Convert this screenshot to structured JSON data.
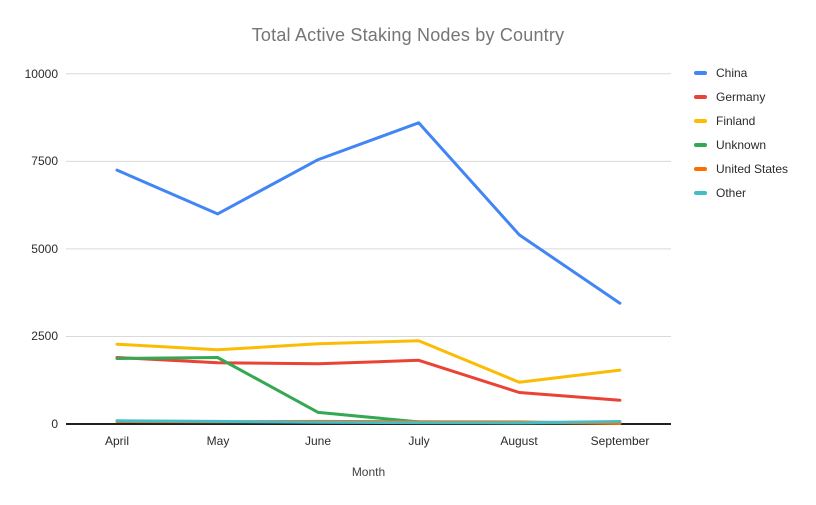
{
  "chart_data": {
    "type": "line",
    "title": "Total Active Staking Nodes by Country",
    "xlabel": "Month",
    "ylabel": "",
    "categories": [
      "April",
      "May",
      "June",
      "July",
      "August",
      "September"
    ],
    "yticks_display": [
      "10000",
      "7500",
      "5000",
      "2500",
      "0"
    ],
    "ylim": [
      0,
      10000
    ],
    "grid": true,
    "legend_position": "right",
    "series": [
      {
        "name": "China",
        "color": "#4285F4",
        "values": [
          7250,
          6000,
          7550,
          8600,
          5400,
          3450
        ]
      },
      {
        "name": "Germany",
        "color": "#EA4335",
        "values": [
          1900,
          1750,
          1720,
          1820,
          900,
          680
        ]
      },
      {
        "name": "Finland",
        "color": "#FBBC04",
        "values": [
          2280,
          2120,
          2290,
          2380,
          1190,
          1540
        ]
      },
      {
        "name": "Unknown",
        "color": "#34A853",
        "values": [
          1870,
          1900,
          330,
          60,
          30,
          40
        ]
      },
      {
        "name": "United States",
        "color": "#FF6D01",
        "values": [
          70,
          65,
          75,
          65,
          60,
          15
        ]
      },
      {
        "name": "Other",
        "color": "#46BDC6",
        "values": [
          90,
          75,
          50,
          40,
          35,
          70
        ]
      }
    ]
  },
  "colors": {
    "title_text": "#757575",
    "axis_text": "#2b2b2b",
    "gridline": "#d9d9d9",
    "axis_line": "#212121",
    "background": "#ffffff"
  }
}
